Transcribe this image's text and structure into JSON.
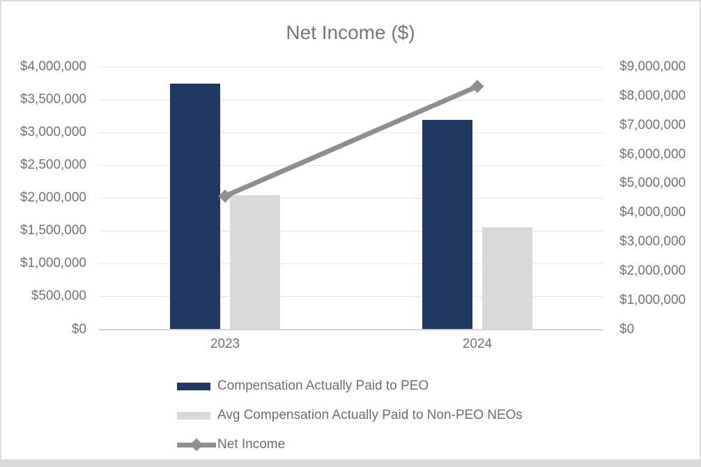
{
  "chart_data": {
    "type": "bar+line",
    "title": "Net Income ($)",
    "categories": [
      "2023",
      "2024"
    ],
    "series": [
      {
        "name": "Compensation Actually Paid to PEO",
        "type": "bar",
        "axis": "left",
        "color": "#1f3864",
        "values": [
          3740000,
          3190000
        ]
      },
      {
        "name": "Avg Compensation Actually Paid to Non-PEO NEOs",
        "type": "bar",
        "axis": "left",
        "color": "#d9d9d9",
        "values": [
          2040000,
          1560000
        ]
      },
      {
        "name": "Net Income",
        "type": "line",
        "axis": "right",
        "color": "#8f8f8f",
        "marker": "diamond",
        "values": [
          4570000,
          8330000
        ]
      }
    ],
    "left_axis": {
      "min": 0,
      "max": 4000000,
      "step": 500000,
      "tick_labels": [
        "$4,000,000",
        "$3,500,000",
        "$3,000,000",
        "$2,500,000",
        "$2,000,000",
        "$1,500,000",
        "$1,000,000",
        "$500,000",
        "$0"
      ]
    },
    "right_axis": {
      "min": 0,
      "max": 9000000,
      "step": 1000000,
      "tick_labels": [
        "$9,000,000",
        "$8,000,000",
        "$7,000,000",
        "$6,000,000",
        "$5,000,000",
        "$4,000,000",
        "$3,000,000",
        "$2,000,000",
        "$1,000,000",
        "$0"
      ]
    },
    "legend_position": "bottom-left",
    "grid": true
  },
  "colors": {
    "title_text": "#767676",
    "axis_text": "#737373",
    "gridline": "#e5e5e5",
    "axis_line": "#d8d8d8",
    "frame_border": "#dbdbdb",
    "background": "#ffffff"
  }
}
